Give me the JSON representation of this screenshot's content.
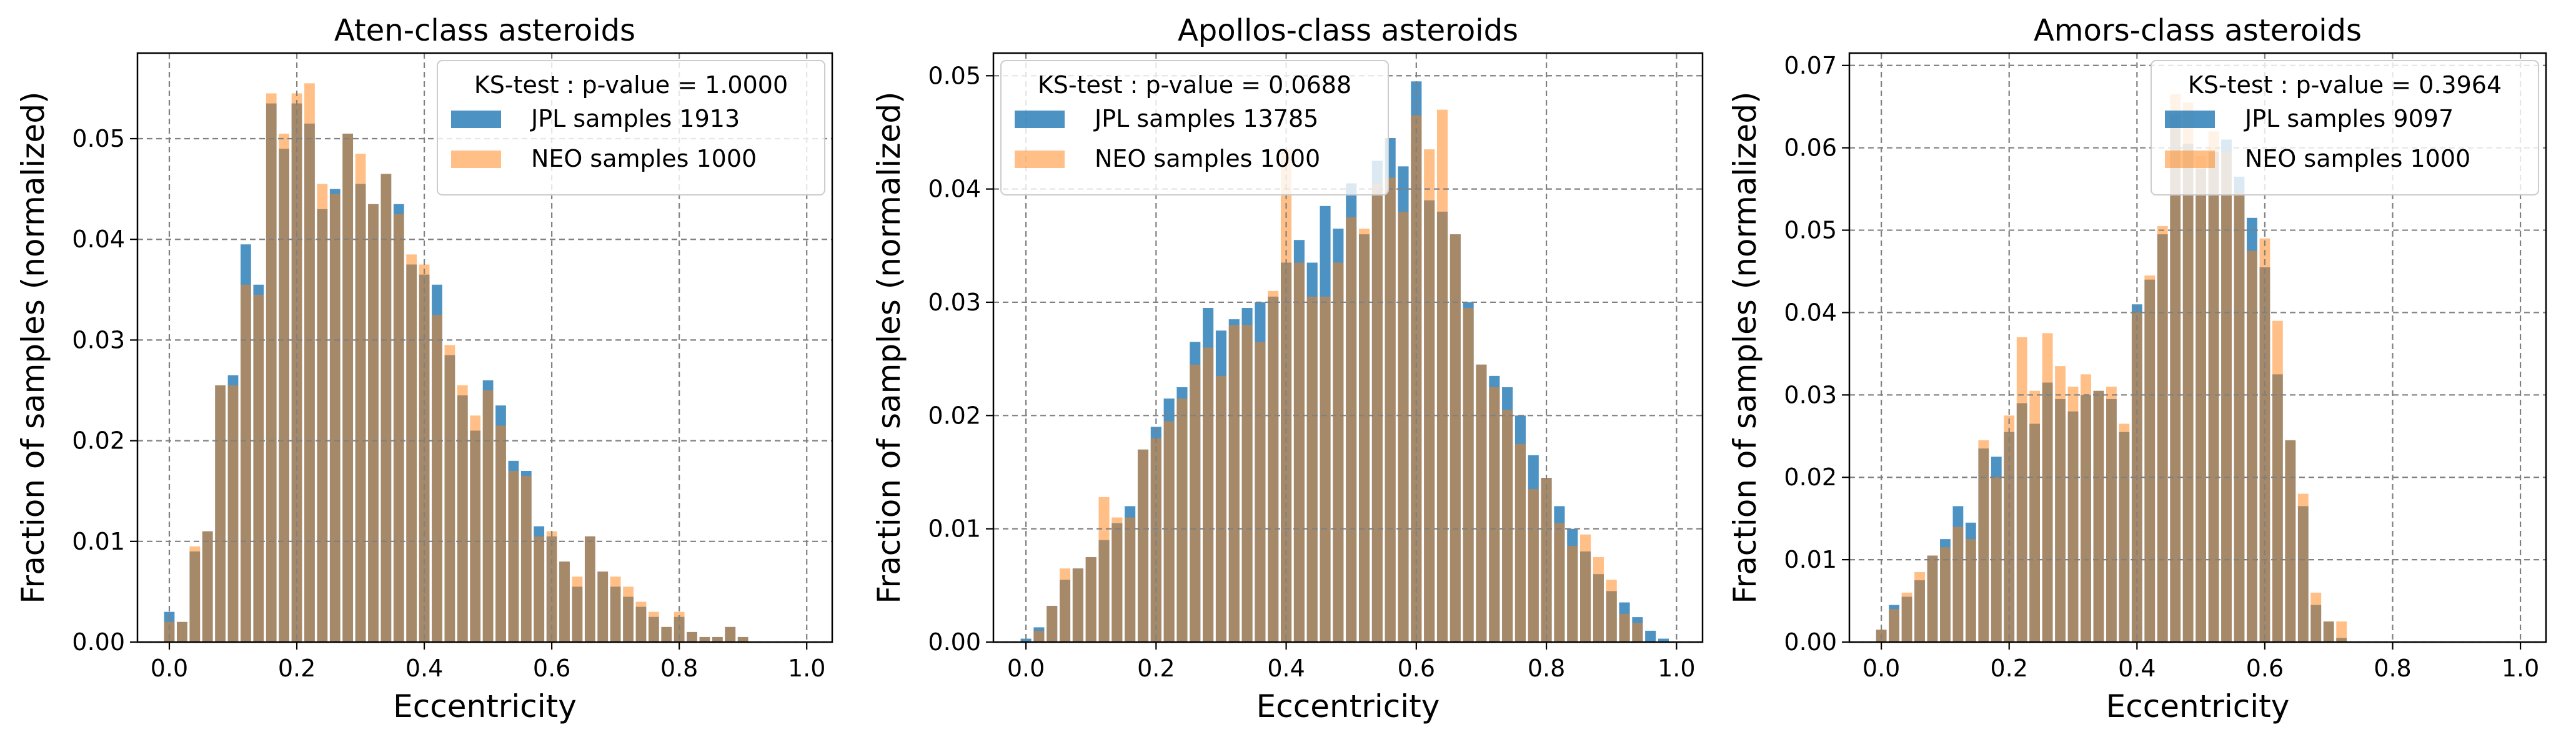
{
  "colors": {
    "jpl": "#1f77b4",
    "neo": "#ff7f0e",
    "grid": "#808080"
  },
  "chart_data": [
    {
      "type": "bar",
      "title": "Aten-class asteroids",
      "xlabel": "Eccentricity",
      "ylabel": "Fraction of samples (normalized)",
      "xlim": [
        -0.05,
        1.04
      ],
      "ylim": [
        0,
        0.0585
      ],
      "xticks": [
        "0.0",
        "0.2",
        "0.4",
        "0.6",
        "0.8",
        "1.0"
      ],
      "yticks": [
        "0.00",
        "0.01",
        "0.02",
        "0.03",
        "0.04",
        "0.05"
      ],
      "grid": true,
      "legend": {
        "position": "top-right",
        "title": "KS-test : p-value = 1.0000"
      },
      "bin_width": 0.02,
      "x": [
        0.0,
        0.02,
        0.04,
        0.06,
        0.08,
        0.1,
        0.12,
        0.14,
        0.16,
        0.18,
        0.2,
        0.22,
        0.24,
        0.26,
        0.28,
        0.3,
        0.32,
        0.34,
        0.36,
        0.38,
        0.4,
        0.42,
        0.44,
        0.46,
        0.48,
        0.5,
        0.52,
        0.54,
        0.56,
        0.58,
        0.6,
        0.62,
        0.64,
        0.66,
        0.68,
        0.7,
        0.72,
        0.74,
        0.76,
        0.78,
        0.8,
        0.82,
        0.84,
        0.86,
        0.88,
        0.9
      ],
      "series": [
        {
          "name": "JPL samples 1913",
          "values": [
            0.003,
            0.002,
            0.009,
            0.011,
            0.0255,
            0.0265,
            0.0395,
            0.0355,
            0.0535,
            0.049,
            0.0535,
            0.0515,
            0.043,
            0.045,
            0.0505,
            0.0455,
            0.0435,
            0.0465,
            0.0435,
            0.0375,
            0.0365,
            0.0355,
            0.0285,
            0.0245,
            0.021,
            0.026,
            0.0235,
            0.018,
            0.017,
            0.0115,
            0.0105,
            0.008,
            0.0055,
            0.0105,
            0.007,
            0.0055,
            0.0045,
            0.0035,
            0.0025,
            0.0015,
            0.0025,
            0.001,
            0.0005,
            0.0005,
            0.0015,
            0.0005
          ]
        },
        {
          "name": "NEO samples 1000",
          "values": [
            0.002,
            0.002,
            0.0095,
            0.011,
            0.0255,
            0.0255,
            0.0355,
            0.0345,
            0.0545,
            0.0505,
            0.0545,
            0.0555,
            0.0455,
            0.0445,
            0.0505,
            0.0485,
            0.0435,
            0.0465,
            0.0425,
            0.0385,
            0.0375,
            0.0325,
            0.0295,
            0.0255,
            0.0225,
            0.025,
            0.0215,
            0.017,
            0.0165,
            0.0105,
            0.011,
            0.008,
            0.0065,
            0.0105,
            0.007,
            0.0065,
            0.0055,
            0.004,
            0.003,
            0.0015,
            0.003,
            0.001,
            0.0005,
            0.0005,
            0.0015,
            0.0005
          ]
        }
      ]
    },
    {
      "type": "bar",
      "title": "Apollos-class asteroids",
      "xlabel": "Eccentricity",
      "ylabel": "Fraction of samples (normalized)",
      "xlim": [
        -0.05,
        1.04
      ],
      "ylim": [
        0,
        0.052
      ],
      "xticks": [
        "0.0",
        "0.2",
        "0.4",
        "0.6",
        "0.8",
        "1.0"
      ],
      "yticks": [
        "0.00",
        "0.01",
        "0.02",
        "0.03",
        "0.04",
        "0.05"
      ],
      "grid": true,
      "legend": {
        "position": "top-left",
        "title": "KS-test : p-value = 0.0688"
      },
      "bin_width": 0.02,
      "x": [
        0.0,
        0.02,
        0.04,
        0.06,
        0.08,
        0.1,
        0.12,
        0.14,
        0.16,
        0.18,
        0.2,
        0.22,
        0.24,
        0.26,
        0.28,
        0.3,
        0.32,
        0.34,
        0.36,
        0.38,
        0.4,
        0.42,
        0.44,
        0.46,
        0.48,
        0.5,
        0.52,
        0.54,
        0.56,
        0.58,
        0.6,
        0.62,
        0.64,
        0.66,
        0.68,
        0.7,
        0.72,
        0.74,
        0.76,
        0.78,
        0.8,
        0.82,
        0.84,
        0.86,
        0.88,
        0.9,
        0.92,
        0.94,
        0.96,
        0.98
      ],
      "series": [
        {
          "name": "JPL samples 13785",
          "values": [
            0.0003,
            0.0013,
            0.0032,
            0.0055,
            0.0065,
            0.0075,
            0.009,
            0.0105,
            0.012,
            0.017,
            0.019,
            0.0215,
            0.0225,
            0.0265,
            0.0295,
            0.0275,
            0.0285,
            0.0295,
            0.03,
            0.0305,
            0.0335,
            0.0355,
            0.0335,
            0.0385,
            0.0365,
            0.0405,
            0.036,
            0.0425,
            0.0445,
            0.042,
            0.0495,
            0.039,
            0.038,
            0.036,
            0.03,
            0.0245,
            0.0235,
            0.0225,
            0.02,
            0.0165,
            0.0145,
            0.012,
            0.01,
            0.008,
            0.006,
            0.0045,
            0.0035,
            0.0022,
            0.001,
            0.0003
          ]
        },
        {
          "name": "NEO samples 1000",
          "values": [
            0.0,
            0.001,
            0.0032,
            0.0065,
            0.0065,
            0.0075,
            0.0128,
            0.011,
            0.011,
            0.017,
            0.018,
            0.0195,
            0.0215,
            0.0245,
            0.026,
            0.0235,
            0.028,
            0.028,
            0.0265,
            0.031,
            0.0435,
            0.0335,
            0.0305,
            0.0305,
            0.0335,
            0.0375,
            0.0365,
            0.0405,
            0.041,
            0.038,
            0.0465,
            0.0435,
            0.047,
            0.036,
            0.0295,
            0.0245,
            0.0225,
            0.0205,
            0.0175,
            0.0135,
            0.0145,
            0.0105,
            0.0085,
            0.0095,
            0.0075,
            0.0055,
            0.0025,
            0.0017,
            0.0,
            0.0
          ]
        }
      ]
    },
    {
      "type": "bar",
      "title": "Amors-class asteroids",
      "xlabel": "Eccentricity",
      "ylabel": "Fraction of samples (normalized)",
      "xlim": [
        -0.05,
        1.04
      ],
      "ylim": [
        0,
        0.0715
      ],
      "xticks": [
        "0.0",
        "0.2",
        "0.4",
        "0.6",
        "0.8",
        "1.0"
      ],
      "yticks": [
        "0.00",
        "0.01",
        "0.02",
        "0.03",
        "0.04",
        "0.05",
        "0.06",
        "0.07"
      ],
      "grid": true,
      "legend": {
        "position": "top-right",
        "title": "KS-test : p-value = 0.3964"
      },
      "bin_width": 0.02,
      "x": [
        0.0,
        0.02,
        0.04,
        0.06,
        0.08,
        0.1,
        0.12,
        0.14,
        0.16,
        0.18,
        0.2,
        0.22,
        0.24,
        0.26,
        0.28,
        0.3,
        0.32,
        0.34,
        0.36,
        0.38,
        0.4,
        0.42,
        0.44,
        0.46,
        0.48,
        0.5,
        0.52,
        0.54,
        0.56,
        0.58,
        0.6,
        0.62,
        0.64,
        0.66,
        0.68,
        0.7,
        0.72
      ],
      "series": [
        {
          "name": "JPL samples 9097",
          "values": [
            0.0015,
            0.0045,
            0.0055,
            0.0075,
            0.0105,
            0.0125,
            0.0165,
            0.0145,
            0.0235,
            0.0225,
            0.0255,
            0.029,
            0.0265,
            0.0315,
            0.0295,
            0.028,
            0.03,
            0.0305,
            0.0295,
            0.0255,
            0.041,
            0.044,
            0.0495,
            0.064,
            0.0605,
            0.0575,
            0.0595,
            0.061,
            0.0565,
            0.0515,
            0.0455,
            0.0325,
            0.0245,
            0.0165,
            0.0045,
            0.0025,
            0.0005
          ]
        },
        {
          "name": "NEO samples 1000",
          "values": [
            0.0015,
            0.004,
            0.006,
            0.0085,
            0.0105,
            0.0115,
            0.014,
            0.0125,
            0.0245,
            0.02,
            0.0275,
            0.037,
            0.0305,
            0.0375,
            0.0335,
            0.031,
            0.0325,
            0.0305,
            0.031,
            0.0265,
            0.04,
            0.0445,
            0.0505,
            0.0665,
            0.0655,
            0.059,
            0.062,
            0.0595,
            0.0545,
            0.0475,
            0.049,
            0.039,
            0.0245,
            0.018,
            0.006,
            0.0025,
            0.0025
          ]
        }
      ]
    }
  ]
}
